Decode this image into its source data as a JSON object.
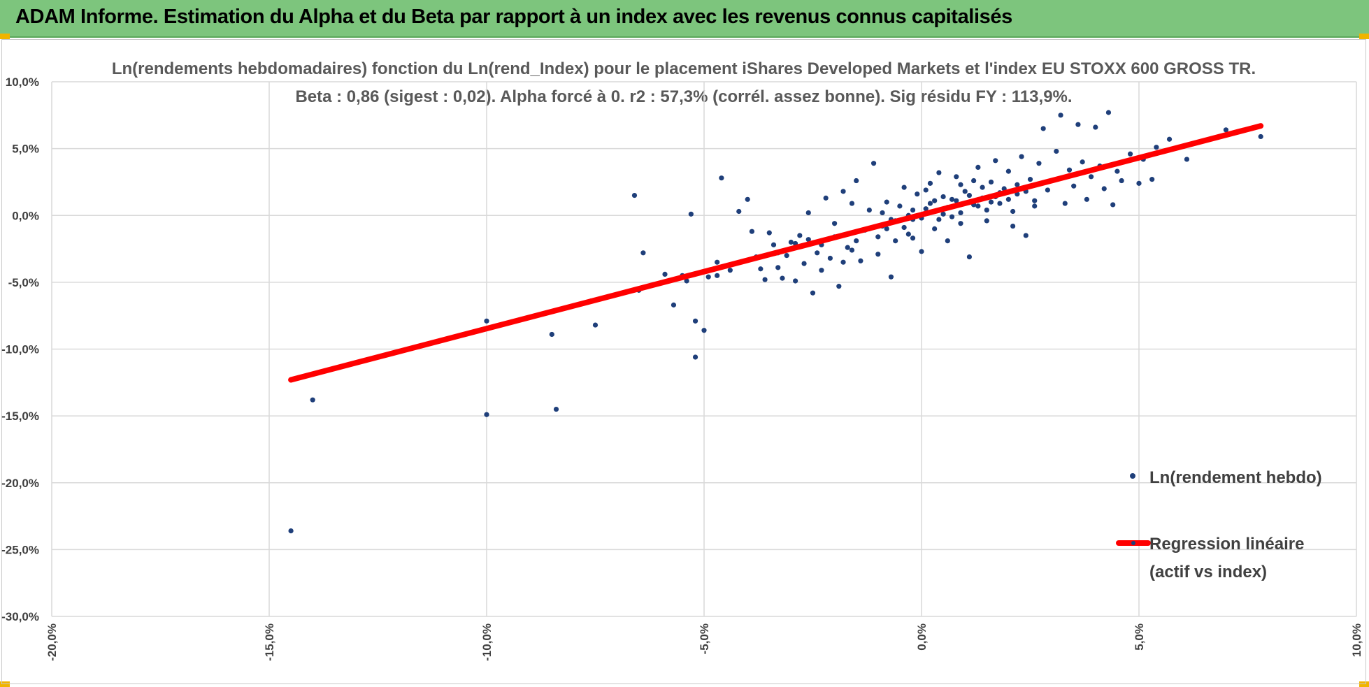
{
  "banner": {
    "title": "ADAM Informe. Estimation du Alpha et du Beta par rapport à un index avec les revenus connus capitalisés",
    "color": "#7dc57d"
  },
  "chart_data": {
    "type": "scatter",
    "title": "Ln(rendements hebdomadaires) fonction du Ln(rend_Index) pour le placement iShares Developed Markets et l'index EU STOXX 600 GROSS TR.",
    "subtitle": "Beta : 0,86 (sigest : 0,02). Alpha forcé à 0. r2 : 57,3% (corrél. assez bonne). Sig résidu FY : 113,9%.",
    "xlabel": "",
    "ylabel": "",
    "xlim": [
      -20,
      10
    ],
    "ylim": [
      -30,
      10
    ],
    "x_ticks": [
      "-20,0%",
      "-15,0%",
      "-10,0%",
      "-5,0%",
      "0,0%",
      "5,0%",
      "10,0%"
    ],
    "y_ticks": [
      "10,0%",
      "5,0%",
      "0,0%",
      "-5,0%",
      "-10,0%",
      "-15,0%",
      "-20,0%",
      "-25,0%",
      "-30,0%"
    ],
    "grid": true,
    "legend_position": "right",
    "series": [
      {
        "name": "Ln(rendement hebdo)",
        "type": "scatter",
        "color": "#1f3f7a",
        "points": [
          [
            -14.5,
            -23.6
          ],
          [
            -14.0,
            -13.8
          ],
          [
            -10.0,
            -14.9
          ],
          [
            -10.0,
            -7.9
          ],
          [
            -8.4,
            -14.5
          ],
          [
            -8.5,
            -8.9
          ],
          [
            -7.6,
            -6.4
          ],
          [
            -7.5,
            -8.2
          ],
          [
            -6.6,
            1.5
          ],
          [
            -6.4,
            -2.8
          ],
          [
            -6.5,
            -5.6
          ],
          [
            -5.9,
            -4.4
          ],
          [
            -5.7,
            -6.7
          ],
          [
            -5.5,
            -4.5
          ],
          [
            -5.4,
            -4.9
          ],
          [
            -5.3,
            0.1
          ],
          [
            -5.2,
            -7.9
          ],
          [
            -5.2,
            -10.6
          ],
          [
            -5.0,
            -8.6
          ],
          [
            -4.9,
            -4.6
          ],
          [
            -4.7,
            -3.5
          ],
          [
            -4.7,
            -4.5
          ],
          [
            -4.6,
            2.8
          ],
          [
            -4.4,
            -4.1
          ],
          [
            -4.2,
            0.3
          ],
          [
            -4.0,
            1.2
          ],
          [
            -3.9,
            -1.2
          ],
          [
            -3.8,
            -3.1
          ],
          [
            -3.7,
            -4.0
          ],
          [
            -3.6,
            -4.8
          ],
          [
            -3.5,
            -1.3
          ],
          [
            -3.4,
            -2.2
          ],
          [
            -3.3,
            -3.9
          ],
          [
            -3.2,
            -4.7
          ],
          [
            -3.1,
            -3.0
          ],
          [
            -3.0,
            -2.0
          ],
          [
            -2.9,
            -4.9
          ],
          [
            -2.8,
            -1.5
          ],
          [
            -2.7,
            -3.6
          ],
          [
            -2.6,
            0.2
          ],
          [
            -2.5,
            -5.8
          ],
          [
            -2.4,
            -2.8
          ],
          [
            -2.3,
            -4.1
          ],
          [
            -2.2,
            1.3
          ],
          [
            -2.1,
            -3.2
          ],
          [
            -2.0,
            -0.6
          ],
          [
            -1.9,
            -5.3
          ],
          [
            -1.8,
            1.8
          ],
          [
            -1.7,
            -2.4
          ],
          [
            -1.6,
            0.9
          ],
          [
            -1.5,
            2.6
          ],
          [
            -1.4,
            -3.4
          ],
          [
            -1.3,
            -1.1
          ],
          [
            -1.2,
            0.4
          ],
          [
            -1.1,
            3.9
          ],
          [
            -1.0,
            -2.9
          ],
          [
            -0.9,
            -0.8
          ],
          [
            -0.8,
            1.0
          ],
          [
            -0.7,
            -4.6
          ],
          [
            -0.6,
            -1.9
          ],
          [
            -0.5,
            0.7
          ],
          [
            -0.4,
            2.1
          ],
          [
            -0.3,
            -1.4
          ],
          [
            -0.2,
            -0.3
          ],
          [
            -0.1,
            1.6
          ],
          [
            0.0,
            -2.7
          ],
          [
            0.1,
            0.5
          ],
          [
            0.2,
            2.4
          ],
          [
            0.3,
            -1.0
          ],
          [
            0.4,
            3.2
          ],
          [
            0.5,
            0.1
          ],
          [
            0.6,
            -1.9
          ],
          [
            0.7,
            1.2
          ],
          [
            0.8,
            2.9
          ],
          [
            0.9,
            -0.6
          ],
          [
            1.0,
            1.8
          ],
          [
            1.1,
            -3.1
          ],
          [
            1.2,
            0.8
          ],
          [
            1.3,
            3.6
          ],
          [
            1.4,
            1.3
          ],
          [
            1.5,
            -0.4
          ],
          [
            1.6,
            2.5
          ],
          [
            1.7,
            4.1
          ],
          [
            1.8,
            0.9
          ],
          [
            1.9,
            2.0
          ],
          [
            2.0,
            3.3
          ],
          [
            2.1,
            -0.8
          ],
          [
            2.2,
            1.6
          ],
          [
            2.3,
            4.4
          ],
          [
            2.4,
            -1.5
          ],
          [
            2.5,
            2.7
          ],
          [
            2.6,
            0.7
          ],
          [
            2.7,
            3.9
          ],
          [
            2.8,
            6.5
          ],
          [
            2.9,
            1.9
          ],
          [
            3.0,
            2.6
          ],
          [
            3.1,
            4.8
          ],
          [
            3.2,
            7.5
          ],
          [
            3.3,
            0.9
          ],
          [
            3.4,
            3.4
          ],
          [
            3.5,
            2.2
          ],
          [
            3.6,
            6.8
          ],
          [
            3.7,
            4.0
          ],
          [
            3.8,
            1.2
          ],
          [
            3.9,
            2.9
          ],
          [
            4.0,
            6.6
          ],
          [
            4.1,
            3.7
          ],
          [
            4.2,
            2.0
          ],
          [
            4.3,
            7.7
          ],
          [
            4.4,
            0.8
          ],
          [
            4.5,
            3.3
          ],
          [
            4.6,
            2.6
          ],
          [
            4.8,
            4.6
          ],
          [
            5.0,
            2.4
          ],
          [
            5.1,
            4.2
          ],
          [
            5.3,
            2.7
          ],
          [
            5.4,
            5.1
          ],
          [
            5.7,
            5.7
          ],
          [
            6.1,
            4.2
          ],
          [
            7.0,
            6.4
          ],
          [
            7.8,
            5.9
          ],
          [
            -0.8,
            -1.0
          ],
          [
            -0.6,
            -0.4
          ],
          [
            -0.4,
            -0.9
          ],
          [
            -0.2,
            0.4
          ],
          [
            0.0,
            -0.2
          ],
          [
            0.2,
            0.9
          ],
          [
            0.3,
            0.3
          ],
          [
            0.5,
            1.4
          ],
          [
            0.6,
            0.6
          ],
          [
            0.8,
            1.1
          ],
          [
            0.9,
            0.2
          ],
          [
            1.0,
            0.9
          ],
          [
            1.1,
            1.5
          ],
          [
            1.3,
            0.7
          ],
          [
            1.4,
            2.1
          ],
          [
            1.6,
            1.0
          ],
          [
            1.8,
            1.7
          ],
          [
            2.0,
            1.2
          ],
          [
            2.2,
            2.3
          ],
          [
            -1.5,
            -1.9
          ],
          [
            -1.2,
            -1.0
          ],
          [
            -1.0,
            -1.6
          ],
          [
            -0.9,
            0.2
          ],
          [
            -0.7,
            -0.3
          ],
          [
            -0.3,
            0.0
          ],
          [
            0.1,
            1.9
          ],
          [
            0.4,
            -0.3
          ],
          [
            0.7,
            -0.1
          ],
          [
            1.2,
            2.6
          ],
          [
            1.5,
            0.4
          ],
          [
            1.7,
            1.4
          ],
          [
            2.1,
            0.3
          ],
          [
            2.4,
            1.8
          ],
          [
            2.6,
            1.1
          ],
          [
            -2.6,
            -1.8
          ],
          [
            -2.3,
            -2.2
          ],
          [
            -2.0,
            -1.6
          ],
          [
            -1.8,
            -3.5
          ],
          [
            -1.6,
            -2.6
          ],
          [
            -3.3,
            -2.8
          ],
          [
            -2.9,
            -2.1
          ],
          [
            -0.2,
            -1.7
          ],
          [
            0.3,
            1.1
          ],
          [
            0.9,
            2.3
          ]
        ]
      },
      {
        "name": "Regression linéaire\n(actif vs index)",
        "type": "line",
        "color": "#ff0000",
        "points": [
          [
            -14.5,
            -12.3
          ],
          [
            7.8,
            6.7
          ]
        ]
      }
    ]
  }
}
